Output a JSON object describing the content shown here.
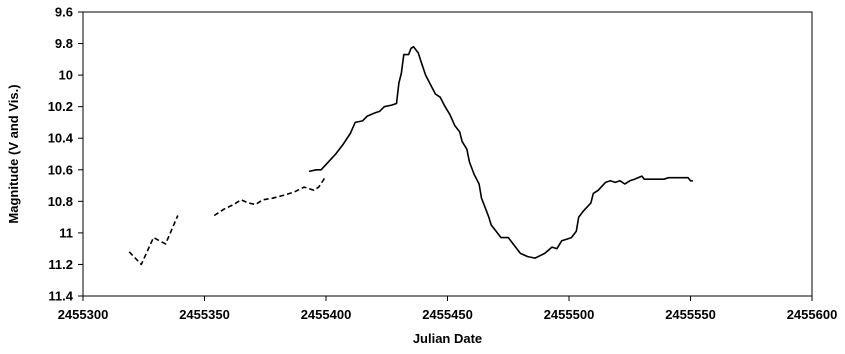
{
  "chart_data": {
    "type": "line",
    "title": "",
    "xlabel": "Julian Date",
    "ylabel": "Magnitude (V and Vis.)",
    "xlim": [
      2455300,
      2455600
    ],
    "ylim": [
      9.6,
      11.4
    ],
    "y_inverted": true,
    "grid": false,
    "legend": "none",
    "x_ticks": [
      2455300,
      2455350,
      2455400,
      2455450,
      2455500,
      2455550,
      2455600
    ],
    "x_tick_labels": [
      "2455300",
      "2455350",
      "2455400",
      "2455450",
      "2455500",
      "2455550",
      "2455600"
    ],
    "y_ticks": [
      9.6,
      9.8,
      10,
      10.2,
      10.4,
      10.6,
      10.8,
      11,
      11.2,
      11.4
    ],
    "y_tick_labels": [
      "9.6",
      "9.8",
      "10",
      "10.2",
      "10.4",
      "10.6",
      "10.8",
      "11",
      "11.2",
      "11.4"
    ],
    "series": [
      {
        "style": "dashed",
        "color": "#000000",
        "segments": [
          [
            [
              2455319,
              11.12
            ],
            [
              2455324,
              11.2
            ],
            [
              2455329,
              11.03
            ],
            [
              2455334,
              11.07
            ],
            [
              2455339,
              10.89
            ]
          ],
          [
            [
              2455354,
              10.89
            ],
            [
              2455358,
              10.85
            ],
            [
              2455362,
              10.82
            ],
            [
              2455365,
              10.79
            ],
            [
              2455368,
              10.81
            ],
            [
              2455371,
              10.82
            ],
            [
              2455374,
              10.79
            ],
            [
              2455378,
              10.78
            ],
            [
              2455383,
              10.76
            ],
            [
              2455387,
              10.74
            ],
            [
              2455391,
              10.71
            ],
            [
              2455395,
              10.73
            ],
            [
              2455397,
              10.71
            ],
            [
              2455400,
              10.64
            ]
          ]
        ]
      },
      {
        "style": "solid",
        "color": "#000000",
        "segments": [
          [
            [
              2455393,
              10.61
            ],
            [
              2455396,
              10.6
            ],
            [
              2455398,
              10.6
            ],
            [
              2455401,
              10.55
            ],
            [
              2455404,
              10.5
            ],
            [
              2455407,
              10.44
            ],
            [
              2455410,
              10.37
            ],
            [
              2455412,
              10.3
            ],
            [
              2455415,
              10.29
            ],
            [
              2455417,
              10.26
            ],
            [
              2455420,
              10.24
            ],
            [
              2455422,
              10.23
            ],
            [
              2455424,
              10.2
            ],
            [
              2455427,
              10.19
            ],
            [
              2455429,
              10.18
            ],
            [
              2455430,
              10.05
            ],
            [
              2455431,
              9.99
            ],
            [
              2455432,
              9.87
            ],
            [
              2455434,
              9.87
            ],
            [
              2455435,
              9.83
            ],
            [
              2455436,
              9.82
            ],
            [
              2455438,
              9.86
            ],
            [
              2455439,
              9.91
            ],
            [
              2455441,
              10.0
            ],
            [
              2455443,
              10.06
            ],
            [
              2455445,
              10.12
            ],
            [
              2455447,
              10.14
            ],
            [
              2455449,
              10.2
            ],
            [
              2455451,
              10.25
            ],
            [
              2455453,
              10.32
            ],
            [
              2455455,
              10.36
            ],
            [
              2455456,
              10.42
            ],
            [
              2455458,
              10.47
            ],
            [
              2455459,
              10.55
            ],
            [
              2455461,
              10.63
            ],
            [
              2455463,
              10.69
            ],
            [
              2455464,
              10.78
            ],
            [
              2455466,
              10.86
            ],
            [
              2455467,
              10.9
            ],
            [
              2455468,
              10.95
            ],
            [
              2455470,
              10.99
            ],
            [
              2455472,
              11.03
            ],
            [
              2455475,
              11.03
            ],
            [
              2455477,
              11.07
            ],
            [
              2455480,
              11.13
            ],
            [
              2455483,
              11.15
            ],
            [
              2455486,
              11.16
            ],
            [
              2455490,
              11.13
            ],
            [
              2455493,
              11.09
            ],
            [
              2455495,
              11.1
            ],
            [
              2455497,
              11.05
            ],
            [
              2455499,
              11.04
            ],
            [
              2455501,
              11.03
            ],
            [
              2455503,
              10.99
            ],
            [
              2455504,
              10.9
            ],
            [
              2455506,
              10.86
            ],
            [
              2455509,
              10.81
            ],
            [
              2455510,
              10.75
            ],
            [
              2455512,
              10.73
            ],
            [
              2455515,
              10.68
            ],
            [
              2455517,
              10.67
            ],
            [
              2455519,
              10.68
            ],
            [
              2455521,
              10.67
            ],
            [
              2455523,
              10.69
            ],
            [
              2455525,
              10.67
            ],
            [
              2455527,
              10.66
            ],
            [
              2455530,
              10.64
            ],
            [
              2455531,
              10.66
            ],
            [
              2455535,
              10.66
            ],
            [
              2455539,
              10.66
            ],
            [
              2455541,
              10.65
            ],
            [
              2455544,
              10.65
            ],
            [
              2455546,
              10.65
            ],
            [
              2455549,
              10.65
            ],
            [
              2455550,
              10.67
            ],
            [
              2455551,
              10.67
            ]
          ]
        ]
      }
    ]
  }
}
